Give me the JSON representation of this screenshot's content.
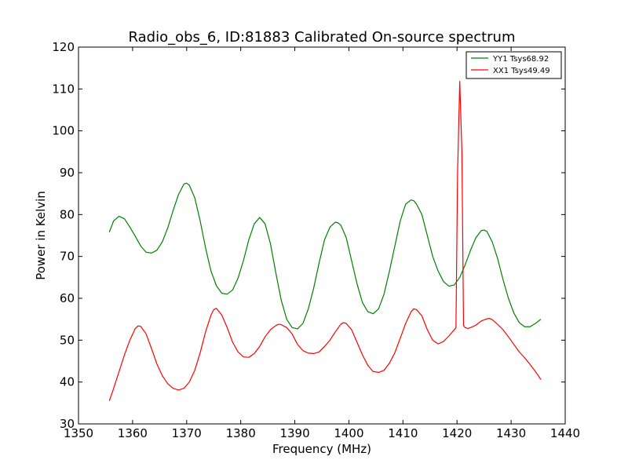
{
  "chart_data": {
    "type": "line",
    "title": "Radio_obs_6, ID:81883 Calibrated On-source spectrum",
    "xlabel": "Frequency (MHz)",
    "ylabel": "Power in Kelvin",
    "xlim": [
      1350,
      1440
    ],
    "ylim": [
      30,
      120
    ],
    "xticks": [
      1350,
      1360,
      1370,
      1380,
      1390,
      1400,
      1410,
      1420,
      1430,
      1440
    ],
    "yticks": [
      30,
      40,
      50,
      60,
      70,
      80,
      90,
      100,
      110,
      120
    ],
    "grid": false,
    "legend_position": "top-right",
    "series": [
      {
        "name": "YY1 Tsys68.92",
        "color": "#008000",
        "x": [
          1355.7,
          1356.5,
          1357.5,
          1358.5,
          1359.5,
          1360.5,
          1361.5,
          1362.5,
          1363.5,
          1364.5,
          1365.5,
          1366.5,
          1367.5,
          1368.5,
          1369.5,
          1370.0,
          1370.5,
          1371.5,
          1372.5,
          1373.5,
          1374.5,
          1375.5,
          1376.5,
          1377.5,
          1378.5,
          1379.5,
          1380.5,
          1381.5,
          1382.5,
          1383.5,
          1384.5,
          1385.5,
          1386.5,
          1387.5,
          1388.5,
          1389.5,
          1390.5,
          1391.5,
          1392.5,
          1393.5,
          1394.5,
          1395.5,
          1396.5,
          1397.5,
          1398.0,
          1398.5,
          1399.5,
          1400.5,
          1401.5,
          1402.5,
          1403.5,
          1404.5,
          1405.5,
          1406.5,
          1407.5,
          1408.5,
          1409.5,
          1410.5,
          1411.5,
          1412.0,
          1412.5,
          1413.5,
          1414.5,
          1415.5,
          1416.5,
          1417.5,
          1418.5,
          1419.5,
          1420.5,
          1421.5,
          1422.5,
          1423.5,
          1424.5,
          1425.0,
          1425.5,
          1426.5,
          1427.5,
          1428.5,
          1429.5,
          1430.5,
          1431.5,
          1432.5,
          1433.5,
          1434.5,
          1435.5
        ],
        "y": [
          75.8,
          78.5,
          79.6,
          79.0,
          77.0,
          74.8,
          72.5,
          71.0,
          70.8,
          71.5,
          73.5,
          76.8,
          81.0,
          84.8,
          87.3,
          87.5,
          87.0,
          84.0,
          78.5,
          72.0,
          66.5,
          63.0,
          61.2,
          61.0,
          62.0,
          64.8,
          69.0,
          74.0,
          77.8,
          79.3,
          77.8,
          73.0,
          66.0,
          59.5,
          55.0,
          53.0,
          52.7,
          54.0,
          57.5,
          62.5,
          68.5,
          74.0,
          77.0,
          78.2,
          78.0,
          77.5,
          74.5,
          69.0,
          63.5,
          59.0,
          56.8,
          56.3,
          57.5,
          61.0,
          66.5,
          72.5,
          78.5,
          82.5,
          83.5,
          83.3,
          82.5,
          80.0,
          75.0,
          70.0,
          66.5,
          64.0,
          62.9,
          63.2,
          65.0,
          68.0,
          71.5,
          74.5,
          76.2,
          76.3,
          76.0,
          73.5,
          69.5,
          64.5,
          60.0,
          56.5,
          54.2,
          53.2,
          53.2,
          54.0,
          55.0
        ]
      },
      {
        "name": "XX1 Tsys49.49",
        "color": "#ff0000",
        "x": [
          1355.7,
          1356.5,
          1357.5,
          1358.5,
          1359.5,
          1360.5,
          1361.0,
          1361.5,
          1362.5,
          1363.5,
          1364.5,
          1365.5,
          1366.5,
          1367.5,
          1368.5,
          1369.5,
          1370.5,
          1371.5,
          1372.5,
          1373.5,
          1374.5,
          1375.0,
          1375.5,
          1376.5,
          1377.5,
          1378.5,
          1379.5,
          1380.5,
          1381.5,
          1382.5,
          1383.5,
          1384.5,
          1385.5,
          1386.5,
          1387.0,
          1387.5,
          1388.5,
          1389.5,
          1390.5,
          1391.5,
          1392.5,
          1393.5,
          1394.5,
          1395.5,
          1396.5,
          1397.5,
          1398.5,
          1399.0,
          1399.5,
          1400.5,
          1401.5,
          1402.5,
          1403.5,
          1404.5,
          1405.5,
          1406.5,
          1407.5,
          1408.5,
          1409.5,
          1410.5,
          1411.5,
          1412.0,
          1412.5,
          1413.5,
          1414.5,
          1415.5,
          1416.5,
          1417.5,
          1418.5,
          1419.5,
          1419.8,
          1420.1,
          1420.5,
          1420.9,
          1421.2,
          1421.5,
          1422.0,
          1422.5,
          1423.5,
          1424.5,
          1425.5,
          1426.0,
          1426.5,
          1427.5,
          1428.5,
          1429.5,
          1430.5,
          1431.5,
          1432.5,
          1433.5,
          1434.5,
          1435.5
        ],
        "y": [
          35.5,
          38.5,
          42.5,
          46.5,
          50.0,
          52.8,
          53.4,
          53.3,
          51.5,
          48.0,
          44.3,
          41.5,
          39.6,
          38.5,
          38.1,
          38.5,
          40.0,
          42.8,
          47.0,
          52.0,
          56.0,
          57.3,
          57.6,
          56.0,
          53.0,
          49.5,
          47.2,
          46.0,
          45.9,
          46.8,
          48.5,
          50.8,
          52.5,
          53.5,
          53.8,
          53.7,
          53.0,
          51.5,
          49.0,
          47.5,
          46.9,
          46.8,
          47.2,
          48.5,
          50.0,
          52.0,
          53.8,
          54.2,
          54.0,
          52.5,
          49.5,
          46.5,
          44.0,
          42.5,
          42.3,
          42.8,
          44.5,
          47.0,
          50.5,
          54.0,
          56.8,
          57.5,
          57.3,
          55.8,
          52.5,
          50.0,
          49.1,
          49.7,
          51.0,
          52.5,
          53.0,
          90.0,
          111.8,
          95.0,
          53.5,
          53.0,
          52.8,
          53.0,
          53.6,
          54.6,
          55.1,
          55.2,
          54.9,
          53.8,
          52.5,
          50.8,
          49.0,
          47.2,
          45.8,
          44.2,
          42.5,
          40.6
        ]
      }
    ]
  }
}
